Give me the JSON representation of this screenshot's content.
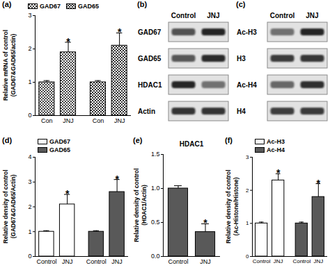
{
  "chart_data": [
    {
      "type": "bar",
      "panel": "(a)",
      "ylabel": "Relative mRNA of control\n(GAD67&GAD65/actin)",
      "categories": [
        "Con",
        "JNJ"
      ],
      "series": [
        {
          "name": "GAD67",
          "color": "#333333",
          "marker": "crosshatch",
          "values": [
            1.0,
            1.9
          ],
          "errors": [
            0.05,
            0.3
          ]
        },
        {
          "name": "GAD65",
          "color": "#333333",
          "marker": "checker",
          "values": [
            1.0,
            2.1
          ],
          "errors": [
            0.05,
            0.38
          ]
        }
      ],
      "ylim": [
        0,
        3
      ],
      "yticks": [
        0,
        1,
        2,
        3
      ],
      "legend": "top",
      "annotations": [
        {
          "series": "GAD67",
          "category": "JNJ",
          "text": "*"
        },
        {
          "series": "GAD65",
          "category": "JNJ",
          "text": "*"
        }
      ]
    },
    {
      "type": "bar",
      "panel": "(d)",
      "ylabel": "Relative density of control\n(GAD67&GAD65/Actin)",
      "categories": [
        "Control",
        "JNJ"
      ],
      "series": [
        {
          "name": "GAD67",
          "color": "#ffffff",
          "values": [
            1.0,
            2.1
          ],
          "errors": [
            0.04,
            0.4
          ]
        },
        {
          "name": "GAD65",
          "color": "#595959",
          "values": [
            1.0,
            2.6
          ],
          "errors": [
            0.04,
            0.5
          ]
        }
      ],
      "ylim": [
        0,
        4
      ],
      "yticks": [
        0,
        1,
        2,
        3,
        4
      ],
      "legend": "upper left",
      "annotations": [
        {
          "series": "GAD67",
          "category": "JNJ",
          "text": "*"
        },
        {
          "series": "GAD65",
          "category": "JNJ",
          "text": "*"
        }
      ]
    },
    {
      "type": "bar",
      "panel": "(e)",
      "title": "HDAC1",
      "ylabel": "Relative density of control\n(HDAC1/Actin)",
      "categories": [
        "Control",
        "JNJ"
      ],
      "values": [
        1.0,
        0.36
      ],
      "errors": [
        0.04,
        0.12
      ],
      "color": "#595959",
      "ylim": [
        0,
        1.5
      ],
      "yticks": [
        {
          "value": 0,
          "label": "0.0"
        },
        {
          "value": 0.5,
          "label": "0.5"
        },
        {
          "value": 1,
          "label": "1.0"
        },
        {
          "value": 1.5,
          "label": "1.5"
        }
      ],
      "annotations": [
        {
          "category": "JNJ",
          "text": "*"
        }
      ]
    },
    {
      "type": "bar",
      "panel": "(f)",
      "ylabel": "Relative density of control\n(Ac-Histone/Histone)",
      "categories": [
        "Control",
        "JNJ"
      ],
      "series": [
        {
          "name": "Ac-H3",
          "color": "#ffffff",
          "values": [
            1.0,
            2.3
          ],
          "errors": [
            0.04,
            0.2
          ]
        },
        {
          "name": "Ac-H4",
          "color": "#595959",
          "values": [
            1.0,
            1.8
          ],
          "errors": [
            0.04,
            0.4
          ]
        }
      ],
      "ylim": [
        0,
        3
      ],
      "yticks": [
        0,
        1,
        2,
        3
      ],
      "legend": "upper left",
      "annotations": [
        {
          "series": "Ac-H3",
          "category": "JNJ",
          "text": "*"
        },
        {
          "series": "Ac-H4",
          "category": "JNJ",
          "text": "*"
        }
      ]
    }
  ],
  "blots": [
    {
      "panel": "(b)",
      "columns": [
        "Control",
        "JNJ"
      ],
      "rows": [
        "GAD67",
        "GAD65",
        "HDAC1",
        "Actin"
      ]
    },
    {
      "panel": "(c)",
      "columns": [
        "Control",
        "JNJ"
      ],
      "rows": [
        "Ac-H3",
        "H3",
        "Ac-H4",
        "H4"
      ]
    }
  ]
}
